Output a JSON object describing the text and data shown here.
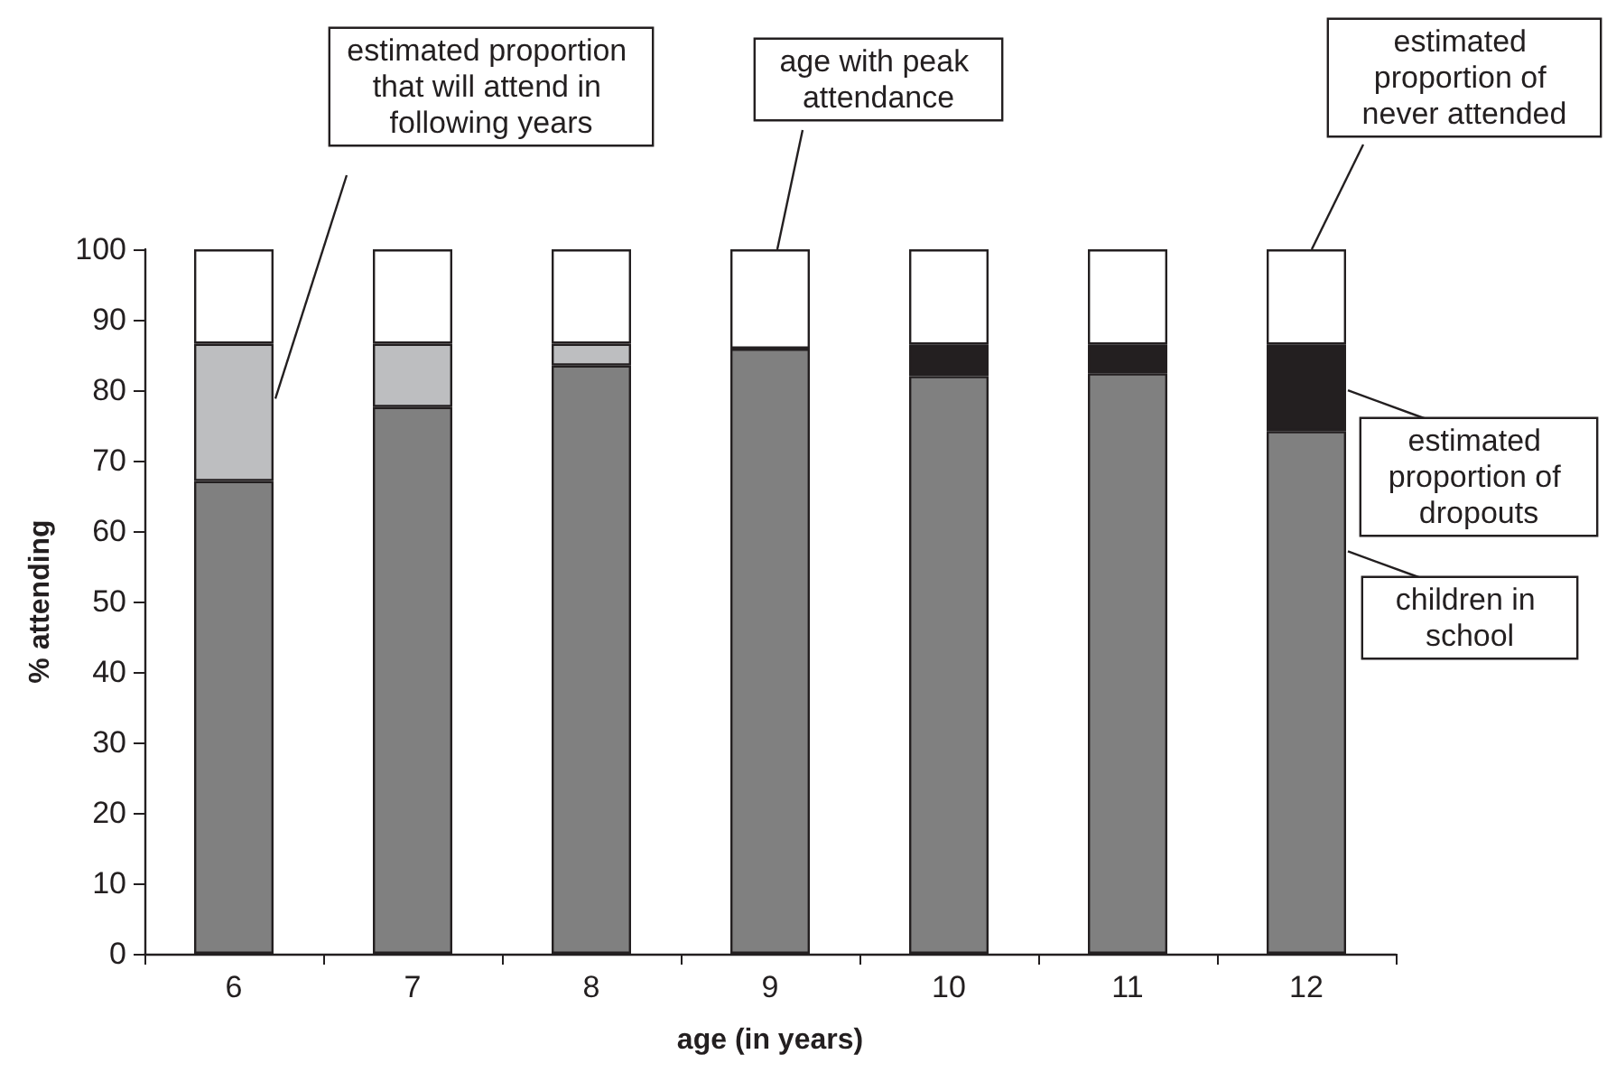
{
  "chart_data": {
    "type": "bar",
    "stacked": true,
    "xlabel": "age (in years)",
    "ylabel": "% attending",
    "categories": [
      "6",
      "7",
      "8",
      "9",
      "10",
      "11",
      "12"
    ],
    "series": [
      {
        "name": "children in school",
        "color": "#808080",
        "values": [
          67.1,
          77.6,
          83.5,
          85.9,
          82.0,
          82.4,
          74.2
        ]
      },
      {
        "name": "estimated proportion that will attend in following years",
        "color": "#bdbec0",
        "values": [
          19.5,
          9.0,
          3.1,
          0,
          0,
          0,
          0
        ]
      },
      {
        "name": "estimated proportion of dropouts",
        "color": "#231f20",
        "values": [
          0,
          0,
          0,
          0,
          4.5,
          4.1,
          12.3
        ]
      },
      {
        "name": "estimated proportion of never attended",
        "color": "#ffffff",
        "values": [
          13.4,
          13.4,
          13.4,
          14.1,
          13.5,
          13.5,
          13.5
        ]
      }
    ],
    "annotations": [
      {
        "text": "age with peak attendance",
        "x": "9",
        "y": 100
      }
    ],
    "ylim": [
      0,
      100
    ],
    "yticks": [
      0,
      10,
      20,
      30,
      40,
      50,
      60,
      70,
      80,
      90,
      100
    ],
    "grid": false,
    "legend": "right"
  }
}
